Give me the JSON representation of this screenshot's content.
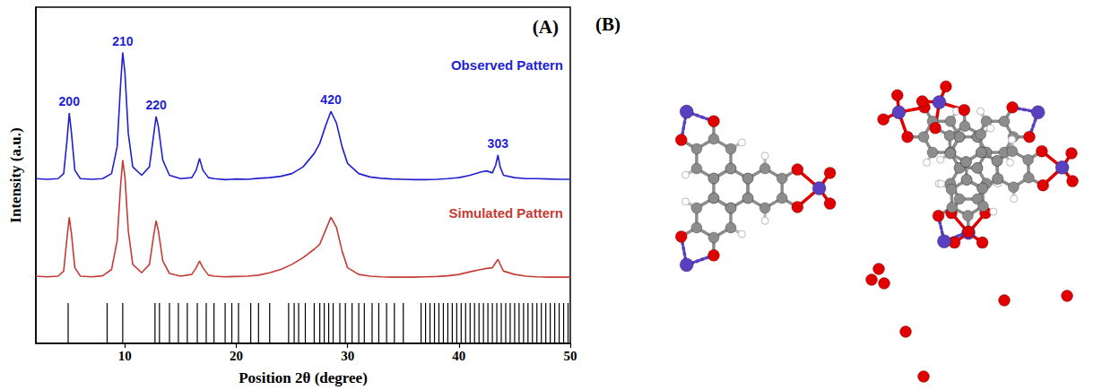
{
  "chart_data": {
    "type": "line",
    "title": "(A)",
    "x_label": "Position 2θ (degree)",
    "y_label": "Intensity (a.u.)",
    "x": [
      2,
      3,
      4,
      4.5,
      4.8,
      5,
      5.2,
      5.5,
      6,
      7,
      8,
      8.8,
      9.3,
      9.6,
      9.8,
      10,
      10.3,
      10.7,
      11.5,
      12.2,
      12.6,
      12.8,
      13,
      13.4,
      14,
      15,
      16,
      16.4,
      16.7,
      17,
      17.5,
      18,
      19,
      20,
      21,
      22,
      23,
      24,
      25,
      26,
      27,
      27.5,
      28,
      28.5,
      29,
      29.5,
      30,
      31,
      32,
      33,
      34,
      35,
      36,
      37,
      38,
      39,
      40,
      41,
      42,
      42.5,
      43,
      43.3,
      43.5,
      43.7,
      44,
      45,
      46,
      47,
      48,
      49,
      50
    ],
    "series": [
      {
        "name": "Observed Pattern",
        "color": "#1f1fd1",
        "values": [
          49,
          48.8,
          49,
          50.5,
          60.5,
          68.5,
          62.5,
          51.5,
          49,
          48.8,
          49,
          50.5,
          58.5,
          76.5,
          86.5,
          80.5,
          62.5,
          52.5,
          50,
          52.5,
          62.5,
          67.5,
          64.5,
          54.5,
          50,
          49,
          49.3,
          51.5,
          55,
          51.5,
          49.3,
          49,
          48.7,
          48.9,
          48.8,
          49.1,
          49.3,
          49.7,
          50.5,
          52.5,
          56.5,
          59.5,
          64.5,
          69,
          65.5,
          58.5,
          53.5,
          50.5,
          49.5,
          49.1,
          48.9,
          48.8,
          48.7,
          48.7,
          48.8,
          49,
          49.3,
          50,
          51,
          51.3,
          50.7,
          53,
          56,
          52.5,
          50,
          49.3,
          49,
          49,
          48.9,
          48.8,
          48.8
        ]
      },
      {
        "name": "Simulated Pattern",
        "color": "#c43c35",
        "values": [
          20,
          19.8,
          20,
          21.5,
          31.5,
          37.5,
          32.5,
          22.5,
          20,
          19.8,
          20.1,
          22,
          30.5,
          46.5,
          54.5,
          49.5,
          33.5,
          23.5,
          21,
          23.5,
          32.5,
          36.5,
          33.5,
          24.5,
          20.8,
          20,
          20.5,
          22.5,
          24.5,
          22.5,
          20.3,
          20,
          19.8,
          19.9,
          20,
          20.3,
          21,
          22,
          23.5,
          25.5,
          28,
          29.5,
          33.5,
          37.5,
          34.5,
          27.5,
          22.5,
          20.5,
          20,
          19.8,
          19.7,
          19.7,
          19.7,
          19.8,
          19.9,
          20.1,
          20.5,
          21.3,
          22,
          22.3,
          22.5,
          24,
          25,
          23.5,
          21.5,
          20.5,
          20,
          19.8,
          19.7,
          19.7,
          19.7
        ]
      }
    ],
    "reflections": {
      "color": "#000000",
      "x": [
        4.9,
        8.4,
        9.8,
        12.7,
        13.1,
        14.0,
        14.8,
        15.6,
        16.5,
        17.3,
        18.0,
        19.0,
        19.6,
        20.2,
        21.3,
        22.0,
        23.0,
        24.7,
        25.2,
        25.6,
        26.2,
        27.0,
        27.5,
        27.9,
        28.3,
        28.7,
        29.3,
        29.8,
        30.4,
        31.0,
        31.5,
        32.2,
        32.8,
        33.5,
        34.2,
        35.0,
        36.6,
        37.0,
        37.4,
        37.8,
        38.2,
        38.6,
        39.0,
        39.4,
        39.8,
        40.2,
        40.6,
        41.0,
        41.4,
        41.8,
        42.2,
        42.6,
        43.0,
        43.4,
        43.8,
        44.2,
        44.6,
        45.0,
        45.4,
        45.8,
        46.2,
        46.6,
        47.0,
        47.4,
        47.8,
        48.2,
        48.6,
        49.0,
        49.4,
        49.8
      ]
    },
    "annotations": [
      {
        "text": "200",
        "x": 5
      },
      {
        "text": "210",
        "x": 9.8
      },
      {
        "text": "220",
        "x": 12.8
      },
      {
        "text": "420",
        "x": 28.5
      },
      {
        "text": "303",
        "x": 43.5
      }
    ],
    "xlim": [
      2,
      50
    ],
    "xticks": [
      10,
      20,
      30,
      40,
      50
    ],
    "ylim": [
      0,
      100
    ],
    "tick_labels": "x",
    "grid": false
  },
  "panel_b": {
    "label": "(B)"
  }
}
